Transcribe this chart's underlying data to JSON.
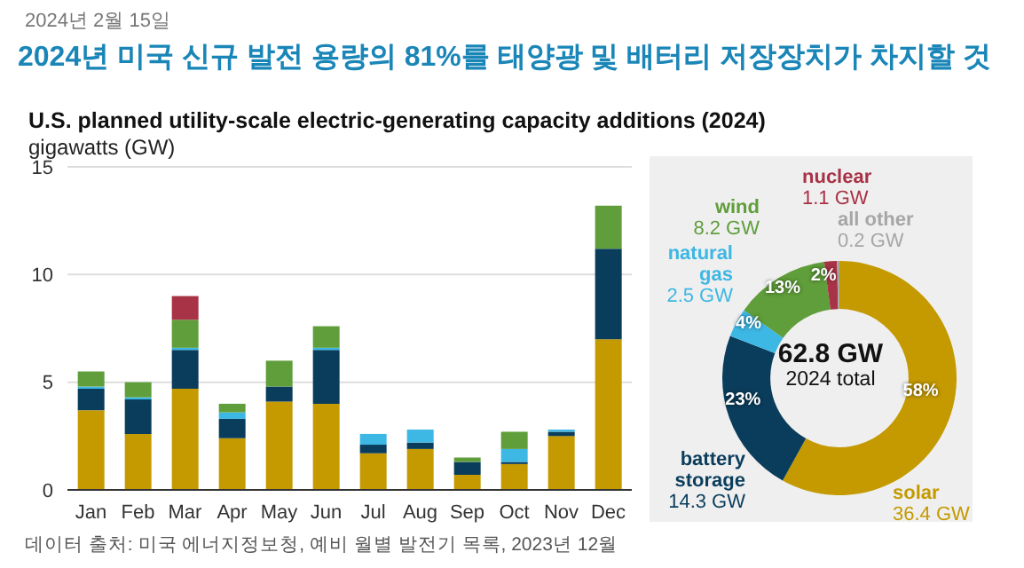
{
  "chart_data": [
    {
      "type": "bar",
      "title": "2024년 미국 신규 발전 용량의 81%를 태양광 및 배터리 저장장치가 차지할 것",
      "subtitle": "U.S. planned utility-scale electric-generating capacity additions (2024)",
      "ylabel": "gigawatts (GW)",
      "annotations": [
        "2024년 2월 15일",
        "데이터 출처: 미국 에너지정보청, 예비 월별 발전기 목록, 2023년 12월"
      ],
      "categories": [
        "Jan",
        "Feb",
        "Mar",
        "Apr",
        "May",
        "Jun",
        "Jul",
        "Aug",
        "Sep",
        "Oct",
        "Nov",
        "Dec"
      ],
      "stacked": true,
      "ylim": [
        0,
        15
      ],
      "yticks": [
        0,
        5,
        10,
        15
      ],
      "grid": "y",
      "legend": false,
      "series": [
        {
          "color": "#c49a00",
          "values": [
            3.7,
            2.6,
            4.7,
            2.4,
            4.1,
            4.0,
            1.7,
            1.9,
            0.7,
            1.2,
            2.5,
            7.0
          ]
        },
        {
          "color": "#0a3d5c",
          "values": [
            1.0,
            1.6,
            1.8,
            0.9,
            0.7,
            2.5,
            0.4,
            0.3,
            0.6,
            0.1,
            0.2,
            4.2
          ]
        },
        {
          "color": "#3db7e4",
          "values": [
            0.1,
            0.1,
            0.1,
            0.3,
            0,
            0.1,
            0.5,
            0.6,
            0,
            0.6,
            0.1,
            0
          ]
        },
        {
          "color": "#5f9e3a",
          "values": [
            0.7,
            0.7,
            1.3,
            0.4,
            1.2,
            1.0,
            0,
            0,
            0.2,
            0.8,
            0,
            2.0
          ]
        },
        {
          "color": "#a83246",
          "values": [
            0,
            0,
            1.1,
            0,
            0,
            0,
            0,
            0,
            0,
            0,
            0,
            0
          ]
        }
      ]
    },
    {
      "type": "donut",
      "categories": [
        "solar",
        "battery storage",
        "natural gas",
        "wind",
        "nuclear",
        "all other"
      ],
      "values": [
        36.4,
        14.3,
        2.5,
        8.2,
        1.1,
        0.2
      ],
      "colors": [
        "#c49a00",
        "#0a3d5c",
        "#3db7e4",
        "#5f9e3a",
        "#a83246",
        "#a6a6a6"
      ],
      "value_labels": [
        "36.4 GW",
        "14.3 GW",
        "2.5 GW",
        "8.2 GW",
        "1.1 GW",
        "0.2 GW"
      ],
      "annotations": [
        "62.8 GW",
        "2024 total",
        {
          "text": "58%",
          "x": "solar"
        },
        {
          "text": "23%",
          "x": "battery storage"
        },
        {
          "text": "4%",
          "x": "natural gas"
        },
        {
          "text": "13%",
          "x": "wind"
        },
        {
          "text": "2%",
          "x": "nuclear"
        }
      ]
    }
  ]
}
